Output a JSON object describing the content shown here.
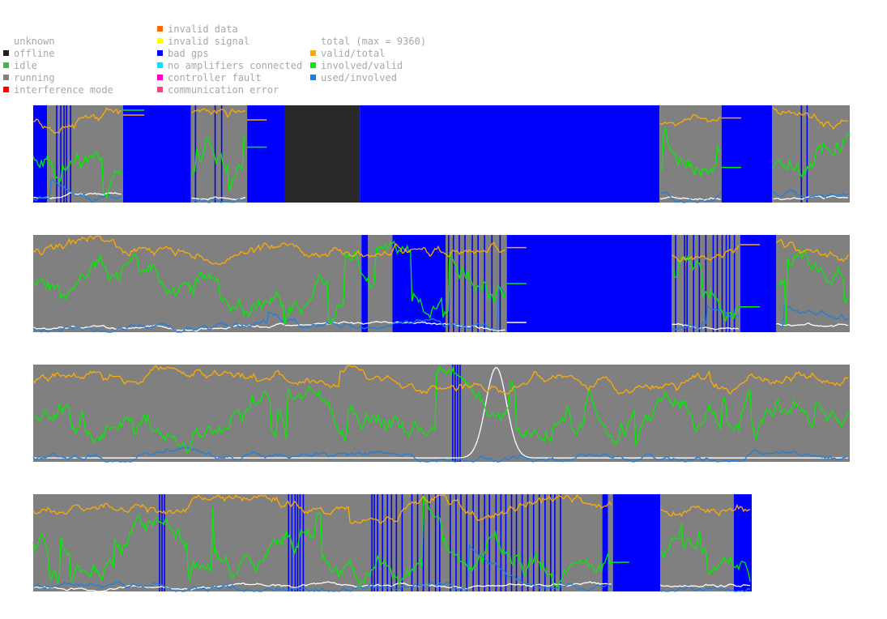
{
  "legend": {
    "status": [
      {
        "label": "unknown",
        "color": "#ffffff"
      },
      {
        "label": "offline",
        "color": "#202020"
      },
      {
        "label": "idle",
        "color": "#4caf50"
      },
      {
        "label": "running",
        "color": "#808080"
      },
      {
        "label": "interference mode",
        "color": "#ff0000"
      }
    ],
    "errors": [
      {
        "label": "invalid data",
        "color": "#ff6a00"
      },
      {
        "label": "invalid signal",
        "color": "#ffff00"
      },
      {
        "label": "bad gps",
        "color": "#0000ff"
      },
      {
        "label": "no amplifiers connected",
        "color": "#00e5ff"
      },
      {
        "label": "controller fault",
        "color": "#ff00cc"
      },
      {
        "label": "communication error",
        "color": "#ff4080"
      }
    ],
    "lines": [
      {
        "label": "total (max = 9360)",
        "color": "#ffffff"
      },
      {
        "label": "valid/total",
        "color": "#ffaa00"
      },
      {
        "label": "involved/valid",
        "color": "#00ee00"
      },
      {
        "label": "used/involved",
        "color": "#1e7fe0"
      }
    ]
  },
  "colors": {
    "running": "#808080",
    "bad_gps": "#0000ff",
    "offline": "#282828",
    "total": "#ffffff",
    "valid_total": "#ffaa00",
    "involved_valid": "#00ee00",
    "used_involved": "#1e7fe0"
  },
  "chart_data": {
    "type": "area",
    "total_max": 9360,
    "y_range": [
      0,
      1
    ],
    "x_range": [
      0,
      1000
    ],
    "rows": [
      {
        "end": 1000,
        "segments": [
          {
            "state": "bad_gps",
            "from": 0,
            "to": 17
          },
          {
            "state": "running",
            "from": 17,
            "to": 110
          },
          {
            "state": "bad_gps",
            "from": 110,
            "to": 193
          },
          {
            "state": "running",
            "from": 193,
            "to": 262
          },
          {
            "state": "bad_gps",
            "from": 262,
            "to": 308
          },
          {
            "state": "offline",
            "from": 308,
            "to": 400
          },
          {
            "state": "bad_gps",
            "from": 400,
            "to": 767
          },
          {
            "state": "running",
            "from": 767,
            "to": 843
          },
          {
            "state": "bad_gps",
            "from": 843,
            "to": 905
          },
          {
            "state": "running",
            "from": 905,
            "to": 1000
          }
        ],
        "bad_gps_ticks": [
          28,
          33,
          37,
          40,
          45,
          198,
          222,
          230,
          854,
          857,
          940,
          947
        ],
        "gaps": [
          [
            110,
            193
          ],
          [
            262,
            308
          ],
          [
            308,
            767
          ],
          [
            843,
            905
          ]
        ],
        "flat_marks": [
          {
            "line": "valid_total",
            "from": 110,
            "to": 136,
            "y": 0.9
          },
          {
            "line": "involved_valid",
            "from": 110,
            "to": 136,
            "y": 0.95
          },
          {
            "line": "valid_total",
            "from": 262,
            "to": 286,
            "y": 0.85
          },
          {
            "line": "involved_valid",
            "from": 262,
            "to": 286,
            "y": 0.57
          },
          {
            "line": "valid_total",
            "from": 843,
            "to": 867,
            "y": 0.87
          },
          {
            "line": "involved_valid",
            "from": 843,
            "to": 867,
            "y": 0.36
          }
        ]
      },
      {
        "end": 1000,
        "segments": [
          {
            "state": "running",
            "from": 0,
            "to": 402
          },
          {
            "state": "bad_gps",
            "from": 402,
            "to": 410
          },
          {
            "state": "running",
            "from": 410,
            "to": 440
          },
          {
            "state": "bad_gps",
            "from": 440,
            "to": 505
          },
          {
            "state": "running",
            "from": 505,
            "to": 580
          },
          {
            "state": "bad_gps",
            "from": 580,
            "to": 782
          },
          {
            "state": "running",
            "from": 782,
            "to": 866
          },
          {
            "state": "bad_gps",
            "from": 866,
            "to": 910
          },
          {
            "state": "running",
            "from": 910,
            "to": 1000
          }
        ],
        "bad_gps_ticks": [
          403,
          407,
          443,
          447,
          452,
          456,
          460,
          463,
          470,
          476,
          481,
          508,
          514,
          521,
          528,
          537,
          544,
          552,
          561,
          571,
          786,
          797,
          800,
          808,
          815,
          823,
          832,
          837,
          843,
          848,
          852,
          858
        ],
        "gaps": [
          [
            580,
            782
          ],
          [
            866,
            910
          ]
        ],
        "flat_marks": [
          {
            "line": "valid_total",
            "from": 580,
            "to": 604,
            "y": 0.87
          },
          {
            "line": "involved_valid",
            "from": 580,
            "to": 604,
            "y": 0.5
          },
          {
            "line": "total",
            "from": 580,
            "to": 604,
            "y": 0.1
          },
          {
            "line": "valid_total",
            "from": 866,
            "to": 890,
            "y": 0.9
          },
          {
            "line": "involved_valid",
            "from": 866,
            "to": 890,
            "y": 0.26
          }
        ]
      },
      {
        "end": 1000,
        "segments": [
          {
            "state": "running",
            "from": 0,
            "to": 1000
          }
        ],
        "bad_gps_ticks": [
          513,
          516,
          519,
          522
        ],
        "gaps": [],
        "flat_marks": []
      },
      {
        "end": 880,
        "segments": [
          {
            "state": "running",
            "from": 0,
            "to": 697
          },
          {
            "state": "bad_gps",
            "from": 697,
            "to": 704
          },
          {
            "state": "running",
            "from": 704,
            "to": 710
          },
          {
            "state": "bad_gps",
            "from": 710,
            "to": 768
          },
          {
            "state": "running",
            "from": 768,
            "to": 858
          },
          {
            "state": "bad_gps",
            "from": 858,
            "to": 880
          }
        ],
        "bad_gps_ticks": [
          154,
          157,
          160,
          312,
          316,
          320,
          323,
          326,
          330,
          414,
          417,
          421,
          427,
          433,
          438,
          444,
          451,
          463,
          470,
          477,
          484,
          492,
          497,
          510,
          517,
          523,
          530,
          538,
          545,
          552,
          558,
          566,
          572,
          578,
          585,
          591,
          598,
          605,
          612,
          619,
          626,
          633,
          638,
          645,
          872,
          877
        ],
        "gaps": [
          [
            710,
            768
          ]
        ],
        "flat_marks": [
          {
            "line": "involved_valid",
            "from": 704,
            "to": 730,
            "y": 0.3
          }
        ]
      }
    ]
  }
}
